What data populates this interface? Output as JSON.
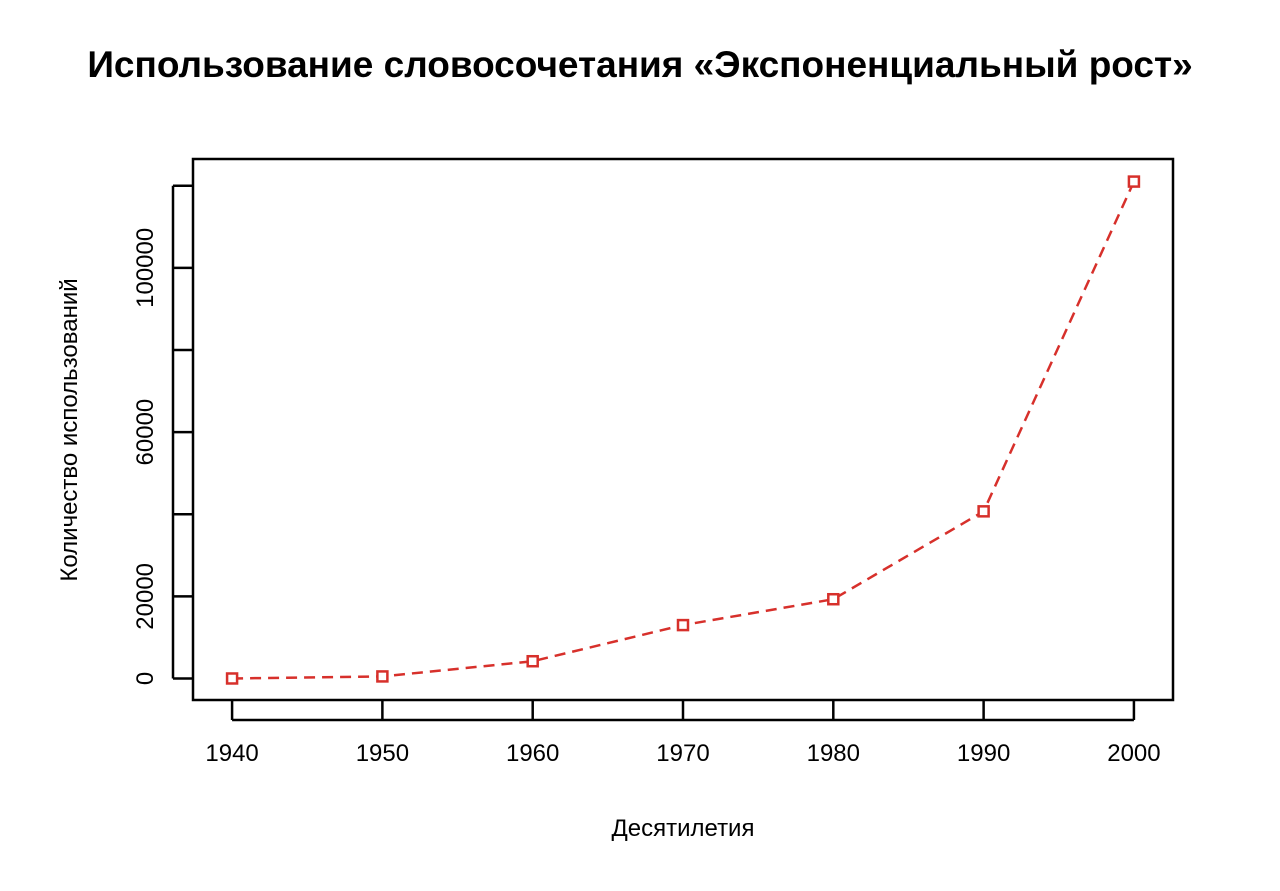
{
  "chart_data": {
    "type": "line",
    "title": "Использование словосочетания «Экспоненциальный рост»",
    "xlabel": "Десятилетия",
    "ylabel": "Количество использований",
    "x": [
      1940,
      1950,
      1960,
      1970,
      1980,
      1990,
      2000
    ],
    "series": [
      {
        "values": [
          0,
          500,
          4200,
          13000,
          19300,
          40700,
          121000
        ],
        "color": "#d7302b",
        "line_style": "dashed",
        "marker": "open-square"
      }
    ],
    "xlim": [
      1937.4,
      2002.6
    ],
    "ylim": [
      -5240,
      126500
    ],
    "x_ticks": [
      1940,
      1950,
      1960,
      1970,
      1980,
      1990,
      2000
    ],
    "y_ticks": [
      0,
      20000,
      40000,
      60000,
      80000,
      100000,
      120000
    ],
    "y_tick_labels": [
      "0",
      "20000",
      "",
      "60000",
      "",
      "100000",
      ""
    ],
    "grid": false,
    "legend": "none"
  }
}
